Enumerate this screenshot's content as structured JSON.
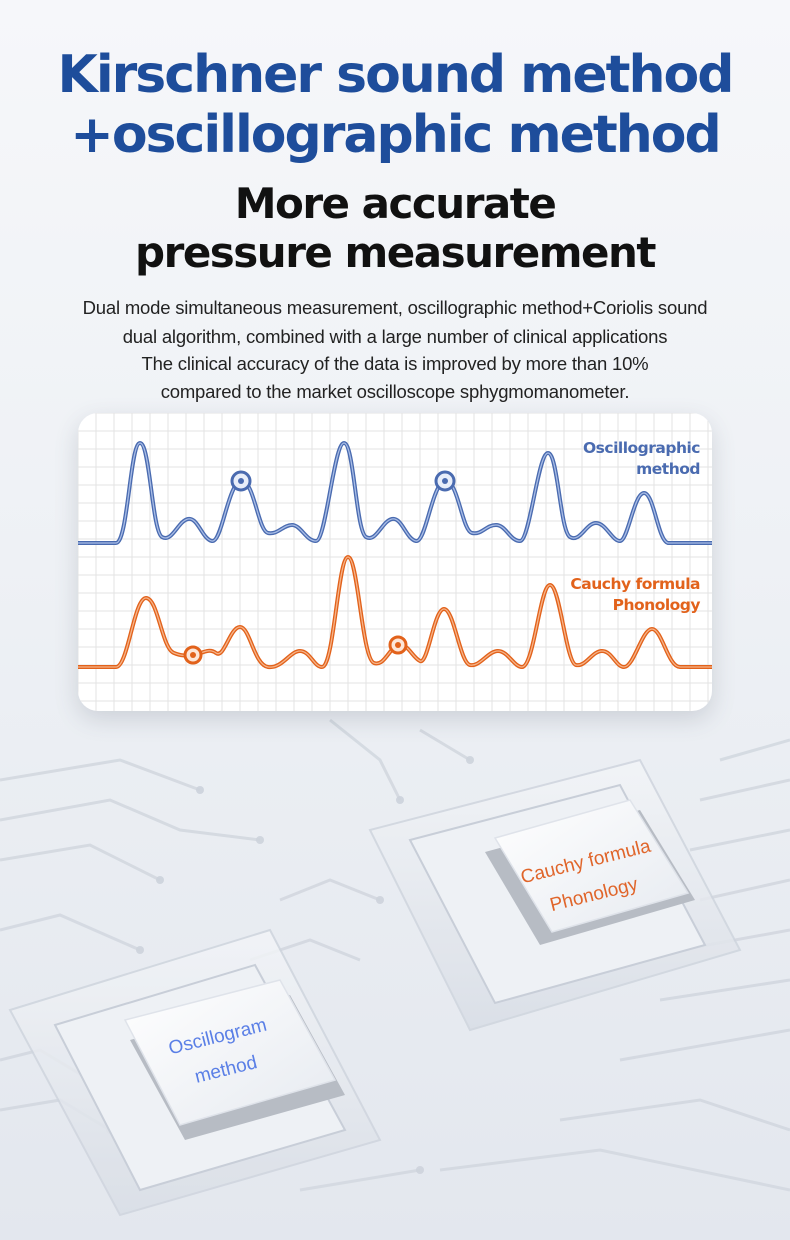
{
  "header": {
    "title_line_1": "Kirschner sound method",
    "title_line_2": "+oscillographic method",
    "subtitle_line_1": "More accurate",
    "subtitle_line_2": "pressure measurement"
  },
  "description": [
    "Dual mode simultaneous measurement, oscillographic method+Coriolis sound",
    "dual algorithm, combined with a large number of clinical applications",
    "The clinical accuracy of the data is improved by more than 10%",
    "compared to the market oscilloscope sphygmomanometer."
  ],
  "chart_card": {
    "series": [
      {
        "label_line_1": "Oscillographic",
        "label_line_2": "method",
        "color": "#4a6bb0"
      },
      {
        "label_line_1": "Cauchy formula",
        "label_line_2": "Phonology",
        "color": "#e2621b"
      }
    ]
  },
  "chips": {
    "right": {
      "label_line_1": "Cauchy formula",
      "label_line_2": "Phonology",
      "color": "#e0652a"
    },
    "left": {
      "label_line_1": "Oscillogram",
      "label_line_2": "method",
      "color": "#5a7fe6"
    }
  },
  "colors": {
    "title": "#1e4d9b",
    "accent_blue": "#4a6bb0",
    "accent_orange": "#e2621b"
  }
}
